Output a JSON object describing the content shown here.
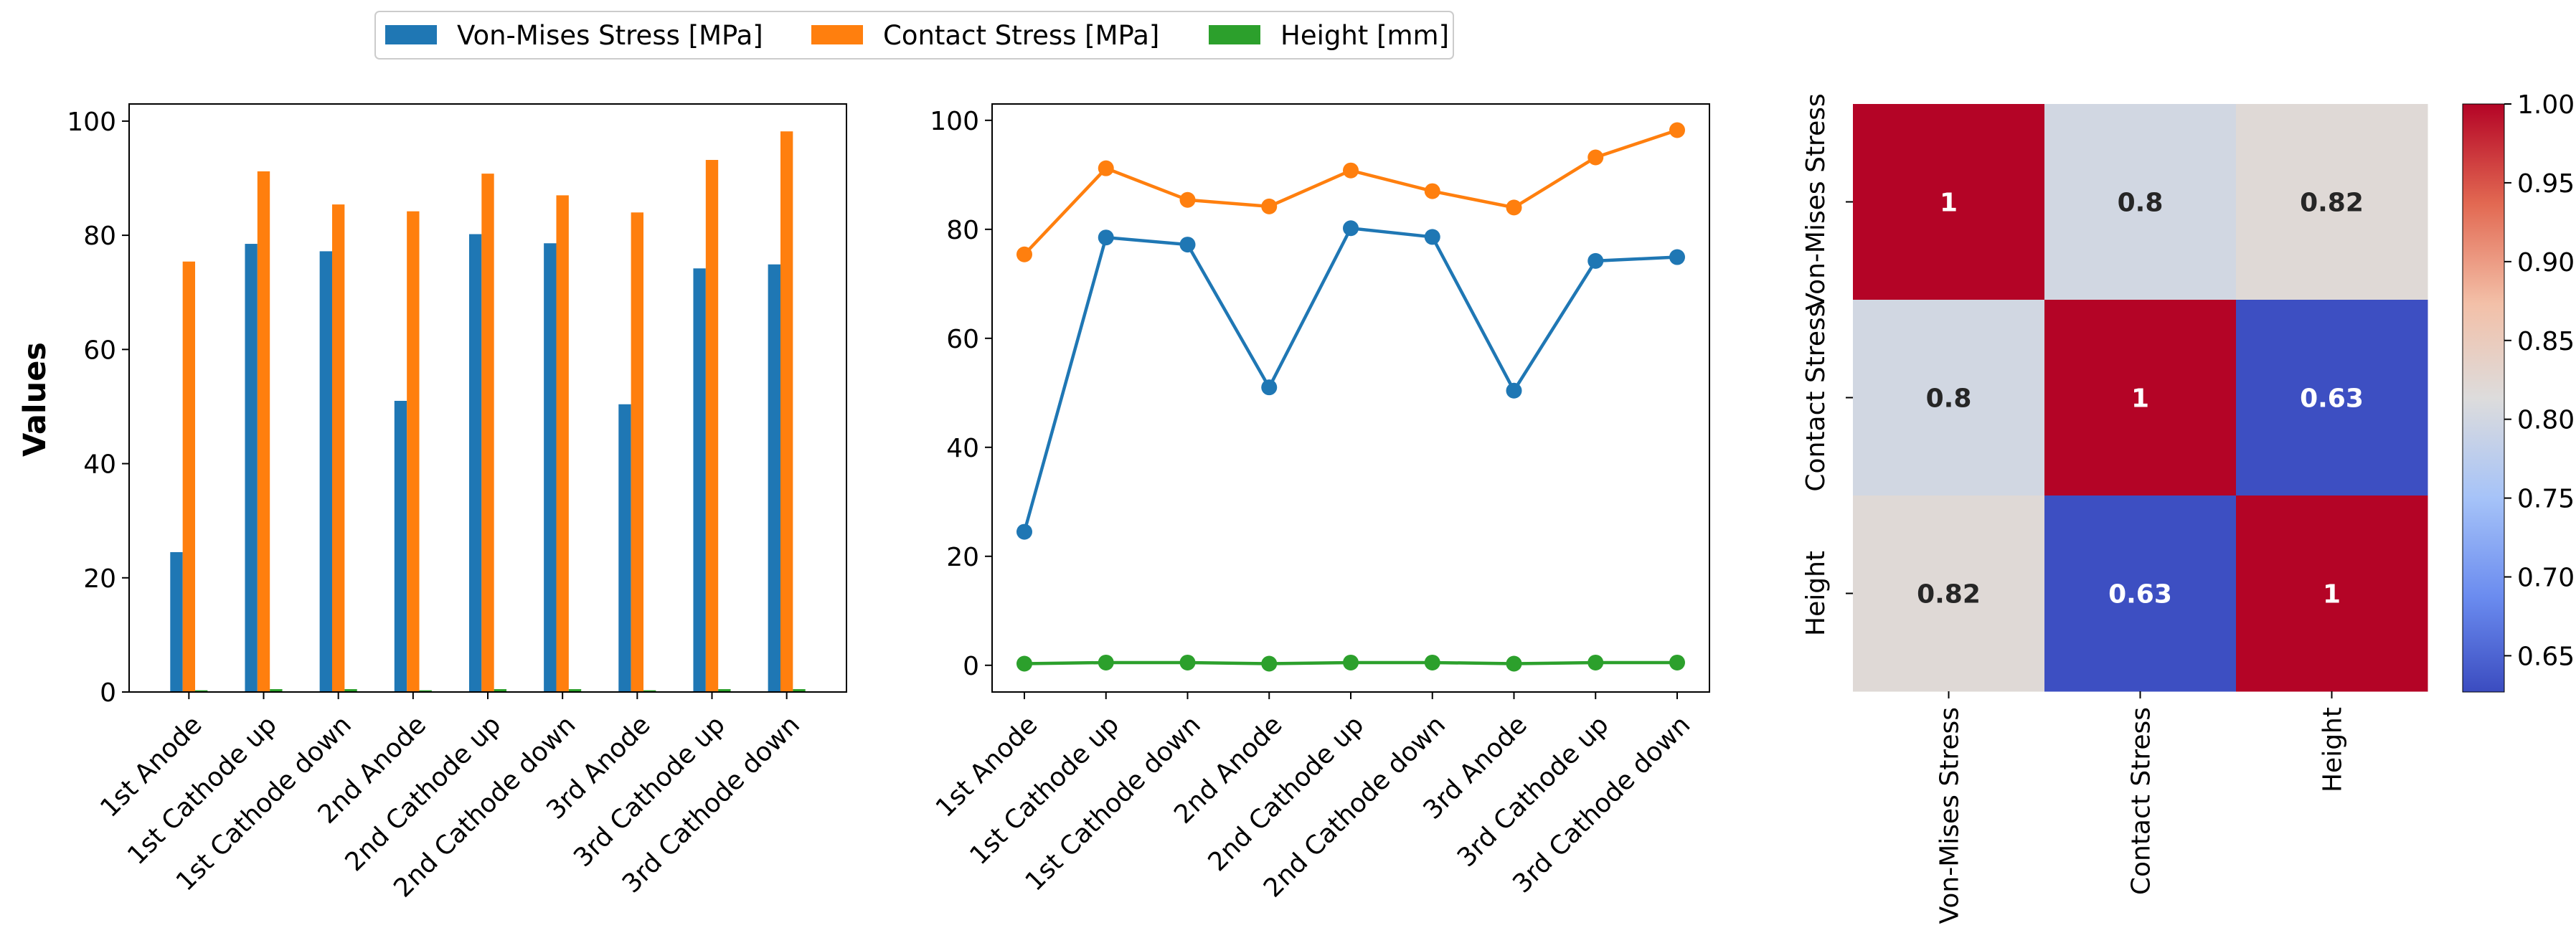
{
  "legend": {
    "items": [
      {
        "label": "Von-Mises Stress [MPa]",
        "color": "#1f77b4"
      },
      {
        "label": "Contact Stress [MPa]",
        "color": "#ff7f0e"
      },
      {
        "label": "Height [mm]",
        "color": "#2ca02c"
      }
    ]
  },
  "chart_data": [
    {
      "type": "bar",
      "categories": [
        "1st Anode",
        "1st Cathode up",
        "1st Cathode down",
        "2nd Anode",
        "2nd Cathode up",
        "2nd Cathode down",
        "3rd Anode",
        "3rd Cathode up",
        "3rd Cathode down"
      ],
      "series": [
        {
          "name": "Von-Mises Stress [MPa]",
          "color": "#1f77b4",
          "values": [
            24.5,
            78.5,
            77.2,
            51.0,
            80.2,
            78.6,
            50.4,
            74.2,
            74.9
          ]
        },
        {
          "name": "Contact Stress [MPa]",
          "color": "#ff7f0e",
          "values": [
            75.4,
            91.2,
            85.4,
            84.2,
            90.8,
            87.0,
            84.0,
            93.2,
            98.2
          ]
        },
        {
          "name": "Height [mm]",
          "color": "#2ca02c",
          "values": [
            0.3,
            0.5,
            0.5,
            0.3,
            0.5,
            0.5,
            0.3,
            0.5,
            0.5
          ]
        }
      ],
      "ylabel": "Values",
      "ylim": [
        0,
        103
      ],
      "yticks": [
        0,
        20,
        40,
        60,
        80,
        100
      ],
      "grid": false
    },
    {
      "type": "line",
      "categories": [
        "1st Anode",
        "1st Cathode up",
        "1st Cathode down",
        "2nd Anode",
        "2nd Cathode up",
        "2nd Cathode down",
        "3rd Anode",
        "3rd Cathode up",
        "3rd Cathode down"
      ],
      "series": [
        {
          "name": "Von-Mises Stress [MPa]",
          "color": "#1f77b4",
          "values": [
            24.5,
            78.5,
            77.2,
            51.0,
            80.2,
            78.6,
            50.4,
            74.2,
            74.9
          ]
        },
        {
          "name": "Contact Stress [MPa]",
          "color": "#ff7f0e",
          "values": [
            75.4,
            91.2,
            85.4,
            84.2,
            90.8,
            87.0,
            84.0,
            93.2,
            98.2
          ]
        },
        {
          "name": "Height [mm]",
          "color": "#2ca02c",
          "values": [
            0.3,
            0.5,
            0.5,
            0.3,
            0.5,
            0.5,
            0.3,
            0.5,
            0.5
          ]
        }
      ],
      "ylim": [
        -4.9,
        103
      ],
      "yticks": [
        0,
        20,
        40,
        60,
        80,
        100
      ],
      "grid": false
    },
    {
      "type": "heatmap",
      "row_labels": [
        "Von-Mises Stress",
        "Contact Stress",
        "Height"
      ],
      "col_labels": [
        "Von-Mises Stress",
        "Contact Stress",
        "Height"
      ],
      "values": [
        [
          1,
          0.8,
          0.82
        ],
        [
          0.8,
          1,
          0.63
        ],
        [
          0.82,
          0.63,
          1
        ]
      ],
      "annotations": [
        [
          "1",
          "0.8",
          "0.82"
        ],
        [
          "0.8",
          "1",
          "0.63"
        ],
        [
          "0.82",
          "0.63",
          "1"
        ]
      ],
      "colormap": "coolwarm",
      "colorbar": {
        "min": 0.627,
        "max": 1.0,
        "ticks": [
          "0.65",
          "0.70",
          "0.75",
          "0.80",
          "0.85",
          "0.90",
          "0.95",
          "1.00"
        ]
      }
    }
  ]
}
